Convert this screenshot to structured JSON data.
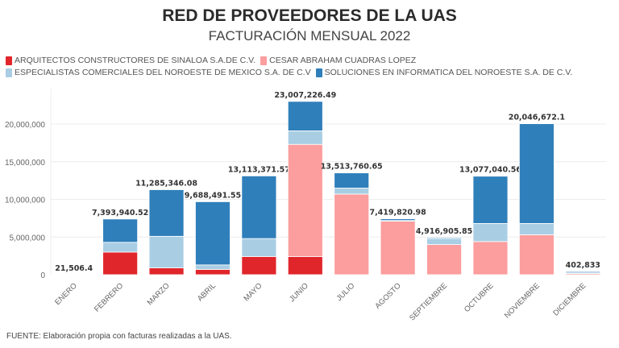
{
  "header": {
    "title": "RED DE PROVEEDORES DE LA UAS",
    "subtitle": "FACTURACIÓN MENSUAL 2022"
  },
  "footer": "FUENTE: Elaboración propia con facturas realizadas a la UAS.",
  "chart_data": {
    "type": "bar",
    "stacked": true,
    "title": "RED DE PROVEEDORES DE LA UAS",
    "subtitle": "FACTURACIÓN MENSUAL 2022",
    "xlabel": "",
    "ylabel": "",
    "ylim": [
      0,
      24000000
    ],
    "yticks": [
      0,
      5000000,
      10000000,
      15000000,
      20000000
    ],
    "ytick_labels": [
      "0",
      "5,000,000",
      "10,000,000",
      "15,000,000",
      "20,000,000"
    ],
    "grid": true,
    "legend_position": "top-left",
    "categories": [
      "ENERO",
      "FEBRERO",
      "MARZO",
      "ABRIL",
      "MAYO",
      "JUNIO",
      "JULIO",
      "AGOSTO",
      "SEPTIEMBRE",
      "OCTUBRE",
      "NOVIEMBRE",
      "DICIEMBRE"
    ],
    "series": [
      {
        "name": "ARQUITECTOS CONSTRUCTORES DE SINALOA S.A.DE C.V.",
        "color": "#e0262b",
        "values": [
          0,
          3000000,
          900000,
          700000,
          2400000,
          2400000,
          0,
          0,
          0,
          0,
          0,
          0
        ]
      },
      {
        "name": "CESAR ABRAHAM CUADRAS LOPEZ",
        "color": "#fc9d9e",
        "values": [
          0,
          0,
          0,
          0,
          0,
          14900000,
          10700000,
          7100000,
          4000000,
          4400000,
          5300000,
          150000
        ]
      },
      {
        "name": "ESPECIALISTAS COMERCIALES DEL NOROESTE DE MEXICO S.A. DE C.V",
        "color": "#a9cee4",
        "values": [
          21506.4,
          1300000,
          4200000,
          600000,
          2400000,
          1800000,
          800000,
          100000,
          800000,
          2400000,
          1500000,
          100000
        ]
      },
      {
        "name": "SOLUCIONES EN INFORMATICA DEL NOROESTE S.A. DE C.V.",
        "color": "#2f7fba",
        "values": [
          0,
          3093940.52,
          6185346.08,
          8388491.55,
          8313371.57,
          3907226.49,
          2013760.65,
          219820.98,
          116905.85,
          6277040.56,
          13246672.1,
          152833
        ]
      }
    ],
    "totals": [
      21506.4,
      7393940.52,
      11285346.08,
      9688491.55,
      13113371.57,
      23007226.49,
      13513760.65,
      7419820.98,
      4916905.85,
      13077040.56,
      20046672.1,
      402833
    ],
    "total_labels": [
      "21,506.4",
      "7,393,940.52",
      "11,285,346.08",
      "9,688,491.55",
      "13,113,371.57",
      "23,007,226.49",
      "13,513,760.65",
      "7,419,820.98",
      "4,916,905.85",
      "13,077,040.56",
      "20,046,672.1",
      "402,833"
    ]
  }
}
